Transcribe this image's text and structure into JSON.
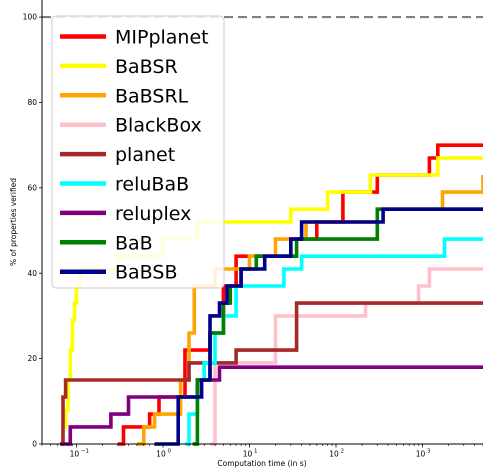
{
  "chart_data": {
    "type": "line",
    "step": true,
    "xscale": "log",
    "xlabel": "Computation time (in s)",
    "ylabel": "% of properties verified",
    "xlim": [
      0.04,
      5000
    ],
    "ylim": [
      0,
      104
    ],
    "yticks": [
      0,
      20,
      40,
      60,
      80,
      100
    ],
    "xticks": [
      {
        "value": 0.1,
        "base": "10",
        "exp": "−1"
      },
      {
        "value": 1,
        "base": "10",
        "exp": "0"
      },
      {
        "value": 10,
        "base": "10",
        "exp": "1"
      },
      {
        "value": 100,
        "base": "10",
        "exp": "2"
      },
      {
        "value": 1000,
        "base": "10",
        "exp": "3"
      }
    ],
    "reference_line": {
      "y": 100,
      "color": "#808080",
      "style": "dashed"
    },
    "legend_position": "upper-left",
    "series": [
      {
        "name": "MIPplanet",
        "color": "#ff0000",
        "x": [
          0.3,
          0.35,
          0.6,
          0.7,
          0.9,
          1.8,
          2.5,
          3.5,
          5,
          7,
          30,
          60,
          120,
          300,
          700,
          1200,
          1500,
          5000
        ],
        "y": [
          0,
          4,
          4,
          7,
          11,
          22,
          22,
          26,
          37,
          44,
          48,
          52,
          59,
          63,
          63,
          67,
          70,
          70
        ]
      },
      {
        "name": "BaBSR",
        "color": "#ffff00",
        "x": [
          0.065,
          0.07,
          0.075,
          0.08,
          0.085,
          0.09,
          0.095,
          0.1,
          0.11,
          0.3,
          0.5,
          1,
          2.5,
          30,
          80,
          250,
          1500,
          5000
        ],
        "y": [
          0,
          4,
          8,
          15,
          22,
          29,
          33,
          37,
          41,
          44,
          44,
          48,
          52,
          55,
          59,
          63,
          67,
          67
        ]
      },
      {
        "name": "BaBSRL",
        "color": "#ffa500",
        "x": [
          0.5,
          0.6,
          0.8,
          1.6,
          2,
          2.3,
          2.6,
          4,
          10,
          20,
          45,
          300,
          1700,
          5000
        ],
        "y": [
          0,
          4,
          7,
          15,
          26,
          37,
          37,
          41,
          44,
          48,
          52,
          55,
          59,
          63
        ]
      },
      {
        "name": "BlackBox",
        "color": "#ffc0cb",
        "x": [
          3.5,
          4,
          15,
          20,
          220,
          900,
          1200,
          5000
        ],
        "y": [
          0,
          19,
          19,
          30,
          33,
          37,
          41,
          41
        ]
      },
      {
        "name": "planet",
        "color": "#a52a2a",
        "x": [
          0.065,
          0.07,
          0.075,
          1.2,
          2,
          7,
          33,
          35,
          5000
        ],
        "y": [
          0,
          11,
          15,
          15,
          19,
          22,
          22,
          33,
          33
        ]
      },
      {
        "name": "reluBaB",
        "color": "#00ffff",
        "x": [
          1.8,
          2,
          2.5,
          3,
          4,
          5,
          7,
          25,
          40,
          1800,
          5000
        ],
        "y": [
          0,
          7,
          15,
          19,
          26,
          30,
          37,
          41,
          44,
          48,
          48
        ]
      },
      {
        "name": "reluplex",
        "color": "#800080",
        "x": [
          0.065,
          0.085,
          0.25,
          0.4,
          2.5,
          4.5,
          5000
        ],
        "y": [
          0,
          4,
          7,
          11,
          15,
          18,
          18
        ]
      },
      {
        "name": "BaB",
        "color": "#008000",
        "x": [
          2.2,
          2.5,
          3.5,
          5,
          6,
          8,
          12,
          35,
          300,
          5000
        ],
        "y": [
          0,
          15,
          26,
          33,
          37,
          41,
          44,
          48,
          55,
          55
        ]
      },
      {
        "name": "BaBSB",
        "color": "#00008b",
        "x": [
          0.8,
          1.5,
          2.8,
          3.5,
          4.5,
          5.5,
          8,
          15,
          30,
          40,
          300,
          350,
          5000
        ],
        "y": [
          0,
          11,
          15,
          30,
          33,
          37,
          41,
          44,
          48,
          52,
          52,
          55,
          55
        ]
      }
    ]
  }
}
